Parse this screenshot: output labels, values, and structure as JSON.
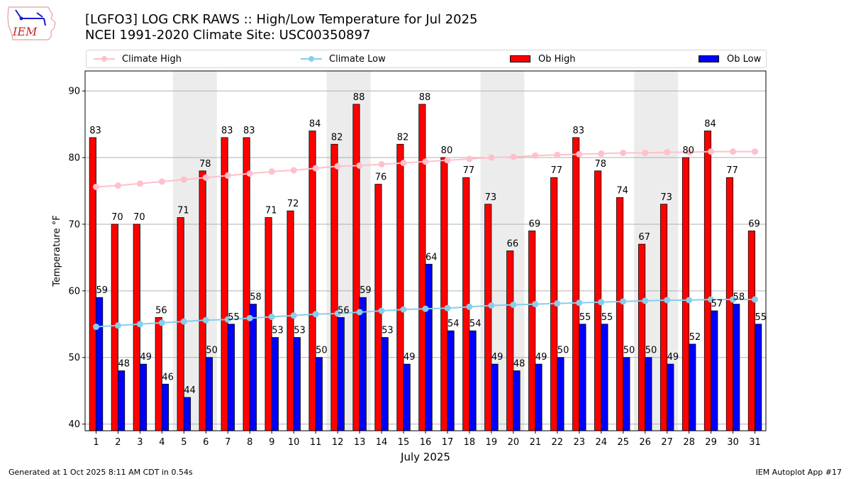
{
  "header": {
    "title_line1": "[LGFO3] LOG CRK RAWS :: High/Low Temperature for Jul 2025",
    "title_line2": "NCEI 1991-2020 Climate Site: USC00350897",
    "logo_text": "IEM"
  },
  "footer": {
    "generated": "Generated at 1 Oct 2025 8:11 AM CDT in 0.54s",
    "app": "IEM Autoplot App #17"
  },
  "chart_data": {
    "type": "bar",
    "title": "[LGFO3] LOG CRK RAWS :: High/Low Temperature for Jul 2025",
    "subtitle": "NCEI 1991-2020 Climate Site: USC00350897",
    "xlabel": "July 2025",
    "ylabel": "Temperature °F",
    "ylim": [
      39,
      93
    ],
    "xlim": [
      0.5,
      31.5
    ],
    "yticks": [
      40,
      50,
      60,
      70,
      80,
      90
    ],
    "grid": "y",
    "legend_position": "top (above plot, spanning width)",
    "weekend_shading_days": [
      [
        5,
        6
      ],
      [
        12,
        13
      ],
      [
        19,
        20
      ],
      [
        26,
        27
      ]
    ],
    "categories": [
      "1",
      "2",
      "3",
      "4",
      "5",
      "6",
      "7",
      "8",
      "9",
      "10",
      "11",
      "12",
      "13",
      "14",
      "15",
      "16",
      "17",
      "18",
      "19",
      "20",
      "21",
      "22",
      "23",
      "24",
      "25",
      "26",
      "27",
      "28",
      "29",
      "30",
      "31"
    ],
    "series": [
      {
        "name": "Climate High",
        "type": "line",
        "color": "#ffc0cb",
        "values": [
          75.6,
          75.8,
          76.1,
          76.4,
          76.7,
          77.0,
          77.3,
          77.6,
          77.9,
          78.1,
          78.4,
          78.7,
          78.8,
          79.0,
          79.2,
          79.4,
          79.6,
          79.8,
          80.0,
          80.1,
          80.3,
          80.4,
          80.5,
          80.6,
          80.7,
          80.7,
          80.8,
          80.8,
          80.9,
          80.9,
          80.9
        ]
      },
      {
        "name": "Climate Low",
        "type": "line",
        "color": "#87ceeb",
        "values": [
          54.6,
          54.8,
          55.0,
          55.2,
          55.4,
          55.6,
          55.7,
          55.9,
          56.1,
          56.3,
          56.5,
          56.6,
          56.8,
          57.0,
          57.2,
          57.3,
          57.4,
          57.6,
          57.8,
          57.9,
          58.0,
          58.1,
          58.2,
          58.3,
          58.4,
          58.5,
          58.6,
          58.6,
          58.7,
          58.7,
          58.7
        ]
      },
      {
        "name": "Ob High",
        "type": "bar",
        "color": "#ff0000",
        "values": [
          83,
          70,
          70,
          56,
          71,
          78,
          83,
          83,
          71,
          72,
          84,
          82,
          88,
          76,
          82,
          88,
          80,
          77,
          73,
          66,
          69,
          77,
          83,
          78,
          74,
          67,
          73,
          80,
          84,
          77,
          69
        ]
      },
      {
        "name": "Ob Low",
        "type": "bar",
        "color": "#0000ff",
        "values": [
          59,
          48,
          49,
          46,
          44,
          50,
          55,
          58,
          53,
          53,
          50,
          56,
          59,
          53,
          49,
          64,
          54,
          54,
          49,
          48,
          49,
          50,
          55,
          55,
          50,
          50,
          49,
          52,
          57,
          58,
          55
        ]
      }
    ]
  }
}
